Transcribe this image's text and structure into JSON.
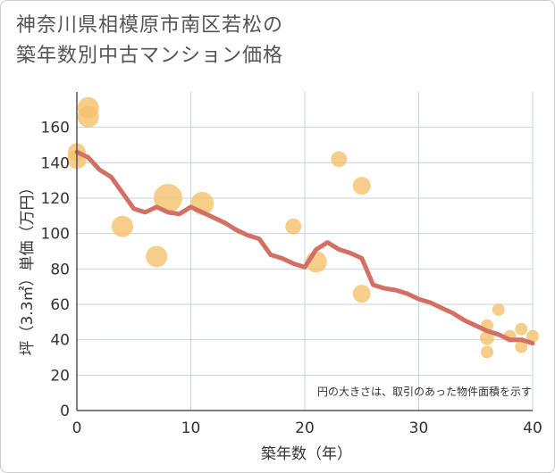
{
  "chart_data": {
    "type": "scatter",
    "title_lines": [
      "神奈川県相模原市南区若松の",
      "築年数別中古マンション価格"
    ],
    "xlabel": "築年数（年）",
    "ylabel": "坪（3.3㎡）単価（万円）",
    "xlim": [
      0,
      40
    ],
    "ylim": [
      0,
      180
    ],
    "x_ticks": [
      0,
      10,
      20,
      30,
      40
    ],
    "y_ticks": [
      0,
      20,
      40,
      60,
      80,
      100,
      120,
      140,
      160
    ],
    "note": "円の大きさは、取引のあった物件面積を示す",
    "colors": {
      "bubble": "#f5c26b",
      "line": "#d27063",
      "grid": "#c8d3e0"
    },
    "bubbles": [
      {
        "x": 0,
        "y": 146,
        "size": 10
      },
      {
        "x": 0,
        "y": 142,
        "size": 11
      },
      {
        "x": 1,
        "y": 171,
        "size": 12
      },
      {
        "x": 1,
        "y": 166,
        "size": 12
      },
      {
        "x": 4,
        "y": 104,
        "size": 12
      },
      {
        "x": 7,
        "y": 87,
        "size": 12
      },
      {
        "x": 8,
        "y": 120,
        "size": 16
      },
      {
        "x": 11,
        "y": 117,
        "size": 13
      },
      {
        "x": 19,
        "y": 104,
        "size": 9
      },
      {
        "x": 21,
        "y": 84,
        "size": 12
      },
      {
        "x": 23,
        "y": 142,
        "size": 9
      },
      {
        "x": 25,
        "y": 127,
        "size": 10
      },
      {
        "x": 25,
        "y": 66,
        "size": 10
      },
      {
        "x": 36,
        "y": 48,
        "size": 7
      },
      {
        "x": 36,
        "y": 41,
        "size": 8
      },
      {
        "x": 36,
        "y": 33,
        "size": 7
      },
      {
        "x": 37,
        "y": 57,
        "size": 7
      },
      {
        "x": 38,
        "y": 42,
        "size": 7
      },
      {
        "x": 39,
        "y": 46,
        "size": 7
      },
      {
        "x": 39,
        "y": 36,
        "size": 7
      },
      {
        "x": 40,
        "y": 42,
        "size": 7
      }
    ],
    "trend": {
      "x": [
        0,
        1,
        2,
        3,
        4,
        5,
        6,
        7,
        8,
        9,
        10,
        11,
        12,
        13,
        14,
        15,
        16,
        17,
        18,
        19,
        20,
        21,
        22,
        23,
        24,
        25,
        26,
        27,
        28,
        29,
        30,
        31,
        32,
        33,
        34,
        35,
        36,
        37,
        38,
        39,
        40
      ],
      "y": [
        146,
        143,
        136,
        132,
        123,
        114,
        112,
        115,
        112,
        111,
        115,
        112,
        109,
        106,
        102,
        99,
        97,
        88,
        86,
        83,
        81,
        91,
        95,
        91,
        89,
        86,
        71,
        69,
        68,
        66,
        63,
        61,
        58,
        55,
        51,
        48,
        45,
        43,
        40,
        40,
        38
      ]
    }
  }
}
